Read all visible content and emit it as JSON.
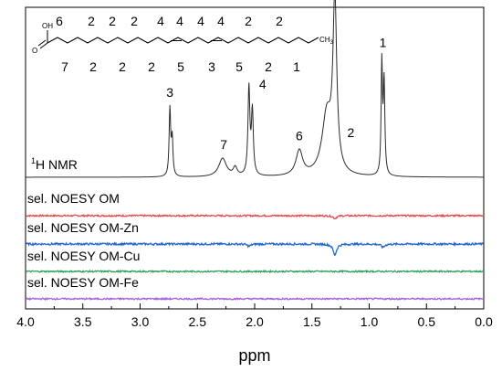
{
  "chart_data": {
    "type": "line",
    "xlabel": "ppm",
    "xlim": [
      4.0,
      0.0
    ],
    "x_reversed": true,
    "x_ticks": [
      "4.0",
      "3.5",
      "3.0",
      "2.5",
      "2.0",
      "1.5",
      "1.0",
      "0.5",
      "0.0"
    ],
    "grid": false,
    "nmr": {
      "label_main": "H NMR",
      "label_superscript": "1",
      "baseline": 0,
      "peaks": [
        {
          "ppm": 2.74,
          "height": 0.4
        },
        {
          "ppm": 2.72,
          "height": 0.22
        },
        {
          "ppm": 2.28,
          "height": 0.11
        },
        {
          "ppm": 2.17,
          "height": 0.05
        },
        {
          "ppm": 2.05,
          "height": 0.52
        },
        {
          "ppm": 2.02,
          "height": 0.38
        },
        {
          "ppm": 1.61,
          "height": 0.15
        },
        {
          "ppm": 1.3,
          "height": 1.0
        },
        {
          "ppm": 1.37,
          "height": 0.36
        },
        {
          "ppm": 0.89,
          "height": 0.66
        },
        {
          "ppm": 0.87,
          "height": 0.55
        }
      ],
      "peak_labels": [
        {
          "text": "3",
          "ppm": 2.74,
          "height": 0.48
        },
        {
          "text": "7",
          "ppm": 2.27,
          "height": 0.17
        },
        {
          "text": "4",
          "ppm": 1.93,
          "height": 0.53
        },
        {
          "text": "6",
          "ppm": 1.61,
          "height": 0.22
        },
        {
          "text": "2",
          "ppm": 1.16,
          "height": 0.24
        },
        {
          "text": "1",
          "ppm": 0.88,
          "height": 0.78
        }
      ]
    },
    "series": [
      {
        "name": "sel. NOESY OM",
        "color": "#e8474b",
        "dips": [
          {
            "ppm": 1.3,
            "depth": 0.05
          }
        ],
        "noise": 0.015
      },
      {
        "name": "sel. NOESY OM-Zn",
        "color": "#1f66c8",
        "dips": [
          {
            "ppm": 1.3,
            "depth": 0.2
          },
          {
            "ppm": 0.88,
            "depth": 0.06
          },
          {
            "ppm": 2.05,
            "depth": 0.04
          }
        ],
        "noise": 0.018
      },
      {
        "name": "sel. NOESY OM-Cu",
        "color": "#2ea05a",
        "dips": [],
        "noise": 0.014
      },
      {
        "name": "sel. NOESY OM-Fe",
        "color": "#a35fd6",
        "dips": [],
        "noise": 0.014
      }
    ],
    "structure": {
      "acid_group": "OH",
      "acid_oxygen": "O",
      "terminal_group": "CH",
      "terminal_subscript": "3",
      "top_labels": [
        "6",
        "2",
        "2",
        "2",
        "4",
        "4",
        "4",
        "4",
        "2",
        "2"
      ],
      "bottom_labels": [
        "7",
        "2",
        "2",
        "2",
        "5",
        "3",
        "5",
        "2",
        "1"
      ]
    }
  }
}
